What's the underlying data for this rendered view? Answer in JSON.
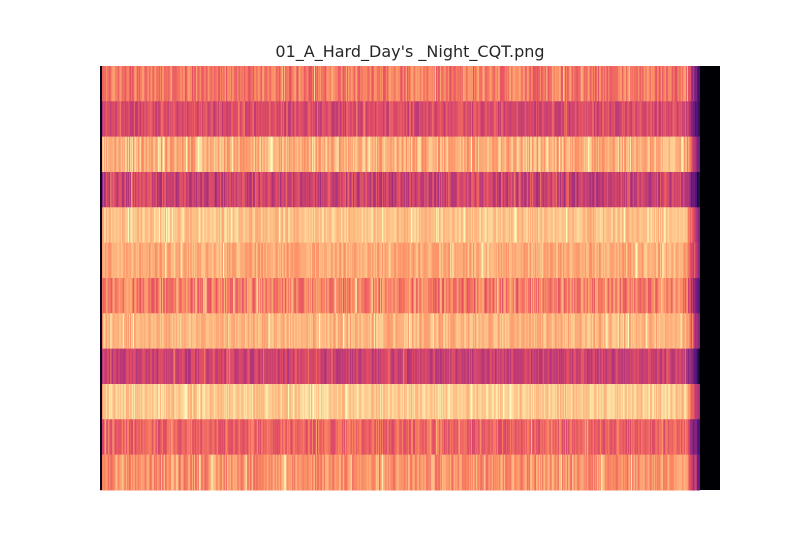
{
  "chart_data": {
    "type": "heatmap",
    "title": "01_A_Hard_Day's _Night_CQT.png",
    "xlabel": "",
    "ylabel": "",
    "axes_visible": false,
    "grid": false,
    "colormap": "magma",
    "rows": 12,
    "columns": 600,
    "active_fraction": 0.967,
    "row_mean_intensity": [
      0.72,
      0.6,
      0.84,
      0.56,
      0.88,
      0.83,
      0.74,
      0.85,
      0.56,
      0.9,
      0.67,
      0.78
    ],
    "row_variation": [
      0.1,
      0.09,
      0.1,
      0.12,
      0.06,
      0.07,
      0.12,
      0.07,
      0.08,
      0.07,
      0.09,
      0.1
    ],
    "value_range": [
      0,
      1
    ]
  }
}
